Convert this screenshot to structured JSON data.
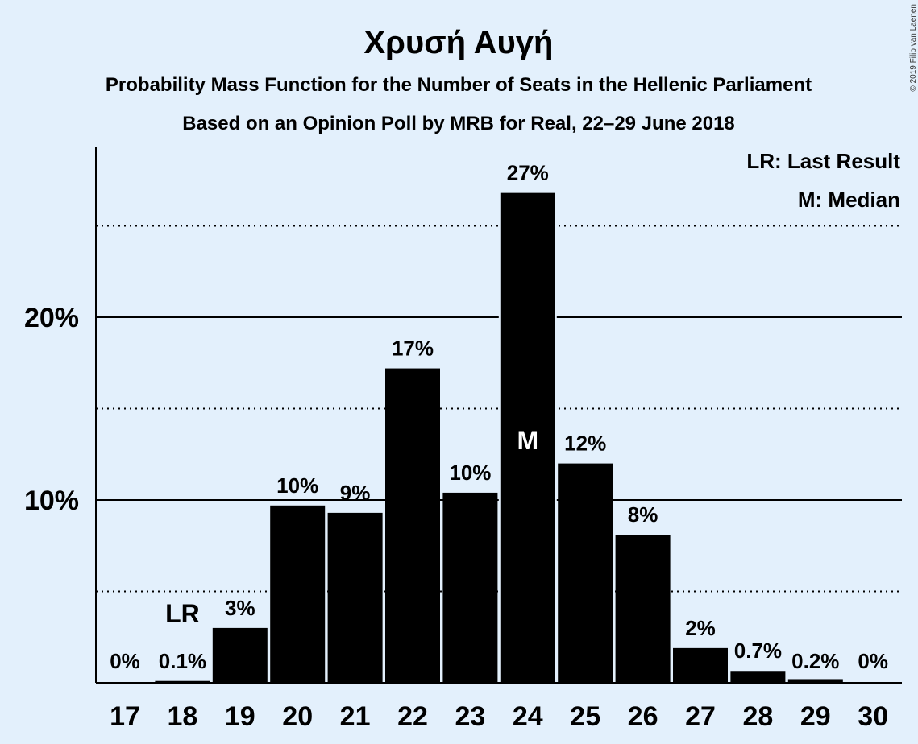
{
  "header": {
    "title": "Χρυσή Αυγή",
    "subtitle1": "Probability Mass Function for the Number of Seats in the Hellenic Parliament",
    "subtitle2": "Based on an Opinion Poll by MRB for Real, 22–29 June 2018"
  },
  "legend": {
    "last_result": "LR: Last Result",
    "median": "M: Median"
  },
  "copyright": "© 2019 Filip van Laenen",
  "colors": {
    "background": "#e3f0fc",
    "bar": "#000000"
  },
  "chart_data": {
    "type": "bar",
    "categories": [
      "17",
      "18",
      "19",
      "20",
      "21",
      "22",
      "23",
      "24",
      "25",
      "26",
      "27",
      "28",
      "29",
      "30"
    ],
    "values": [
      0,
      0.1,
      3.0,
      9.7,
      9.3,
      17.2,
      10.4,
      26.8,
      12.0,
      8.1,
      1.9,
      0.65,
      0.2,
      0
    ],
    "value_labels": [
      "0%",
      "0.1%",
      "3%",
      "10%",
      "9%",
      "17%",
      "10%",
      "27%",
      "12%",
      "8%",
      "2%",
      "0.7%",
      "0.2%",
      "0%"
    ],
    "y_ticks": [
      {
        "value": 10,
        "label": "10%"
      },
      {
        "value": 20,
        "label": "20%"
      }
    ],
    "ylim": [
      0,
      29.3
    ],
    "grid": {
      "solid": [
        10,
        20
      ],
      "dotted": [
        5,
        15,
        25
      ]
    },
    "last_result_category": "18",
    "last_result_label": "LR",
    "median_category": "24",
    "median_label": "M",
    "legend_position": "top-right"
  }
}
